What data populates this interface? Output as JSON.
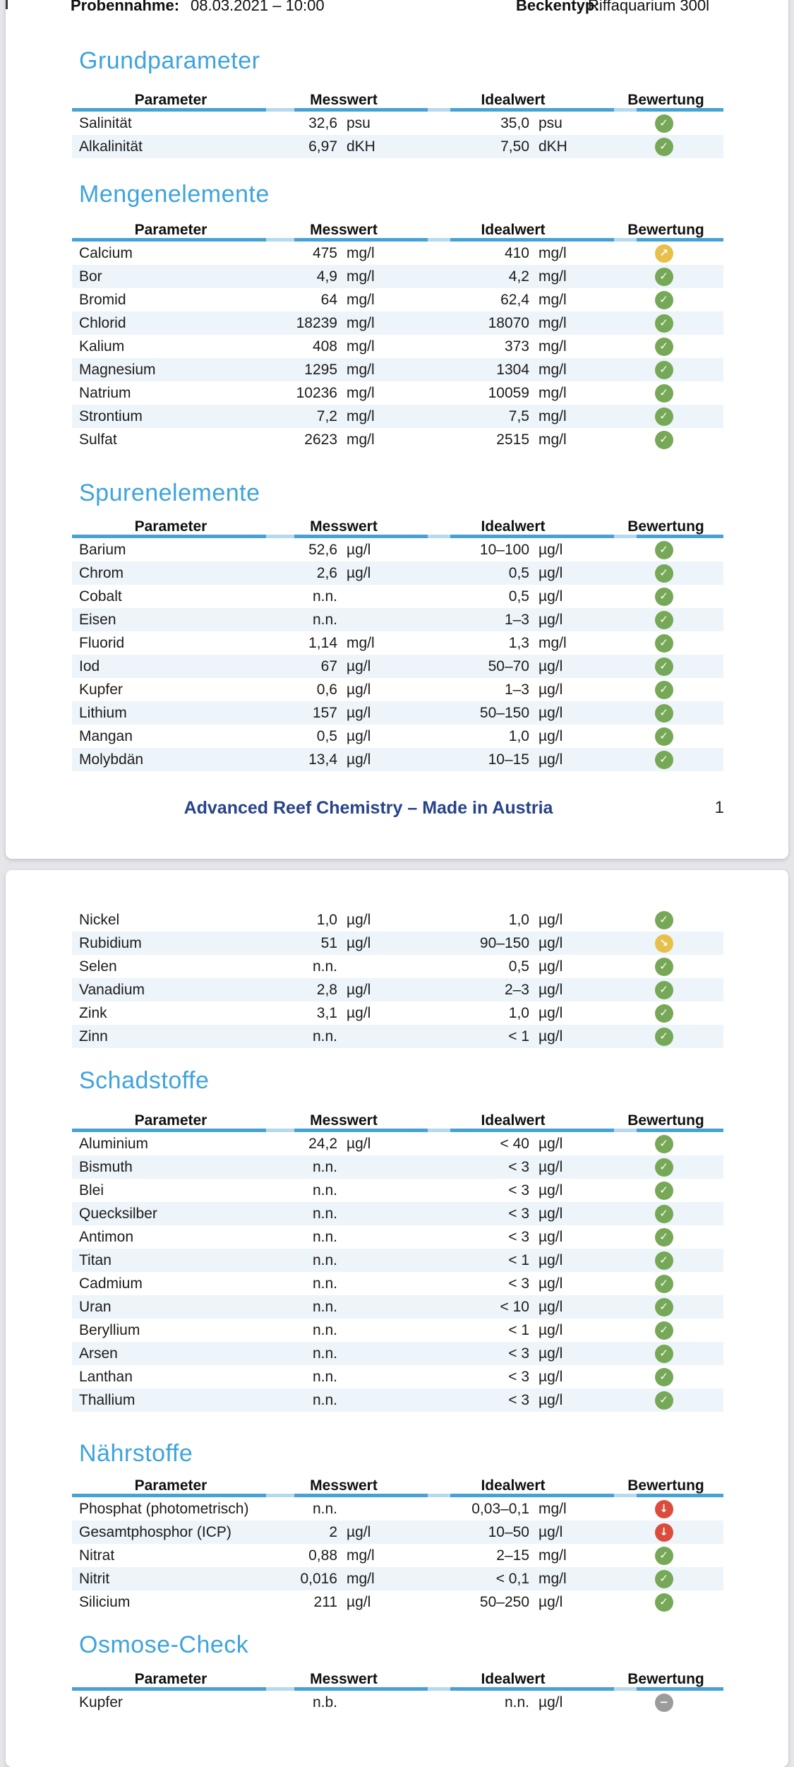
{
  "doc_header": {
    "sample_label": "Probennahme:",
    "sample_value": "08.03.2021 – 10:00",
    "tank_label": "Beckentyp:",
    "tank_value": "Riffaquarium 300l"
  },
  "columns": {
    "parameter": "Parameter",
    "messwert": "Messwert",
    "idealwert": "Idealwert",
    "bewertung": "Bewertung"
  },
  "footer": {
    "text": "Advanced Reef Chemistry – Made in Austria",
    "page_number": "1"
  },
  "colors": {
    "heading_blue": "#3fa3dc",
    "line_dark": "#46a1d6",
    "line_light": "#b5d9ee",
    "row_alt": "#edf4fa",
    "footer_navy": "#27438c",
    "status_ok": "#76a857",
    "status_warn": "#e7c04b",
    "status_bad": "#dc4c3c",
    "status_na": "#9b9b9b"
  },
  "status_icons": {
    "ok": {
      "glyph": "✓",
      "color": "#76a857",
      "name": "status-ok-check-icon"
    },
    "high": {
      "glyph": "↗",
      "color": "#e7c04b",
      "name": "status-slightly-high-arrow-icon"
    },
    "low_slight": {
      "glyph": "↘",
      "color": "#e7c04b",
      "name": "status-slightly-low-arrow-icon"
    },
    "low": {
      "glyph": "↓",
      "color": "#dc4c3c",
      "name": "status-too-low-arrow-icon"
    },
    "na": {
      "glyph": "−",
      "color": "#9b9b9b",
      "name": "status-not-determined-icon"
    }
  },
  "sections": [
    {
      "id": "grund",
      "page": 1,
      "title": "Grundparameter",
      "show_header": true,
      "rows": [
        {
          "param": "Salinität",
          "mw": "32,6",
          "mwu": "psu",
          "iw": "35,0",
          "iwu": "psu",
          "status": "ok"
        },
        {
          "param": "Alkalinität",
          "mw": "6,97",
          "mwu": "dKH",
          "iw": "7,50",
          "iwu": "dKH",
          "status": "ok"
        }
      ]
    },
    {
      "id": "mengen",
      "page": 1,
      "title": "Mengenelemente",
      "show_header": true,
      "rows": [
        {
          "param": "Calcium",
          "mw": "475",
          "mwu": "mg/l",
          "iw": "410",
          "iwu": "mg/l",
          "status": "high"
        },
        {
          "param": "Bor",
          "mw": "4,9",
          "mwu": "mg/l",
          "iw": "4,2",
          "iwu": "mg/l",
          "status": "ok"
        },
        {
          "param": "Bromid",
          "mw": "64",
          "mwu": "mg/l",
          "iw": "62,4",
          "iwu": "mg/l",
          "status": "ok"
        },
        {
          "param": "Chlorid",
          "mw": "18239",
          "mwu": "mg/l",
          "iw": "18070",
          "iwu": "mg/l",
          "status": "ok"
        },
        {
          "param": "Kalium",
          "mw": "408",
          "mwu": "mg/l",
          "iw": "373",
          "iwu": "mg/l",
          "status": "ok"
        },
        {
          "param": "Magnesium",
          "mw": "1295",
          "mwu": "mg/l",
          "iw": "1304",
          "iwu": "mg/l",
          "status": "ok"
        },
        {
          "param": "Natrium",
          "mw": "10236",
          "mwu": "mg/l",
          "iw": "10059",
          "iwu": "mg/l",
          "status": "ok"
        },
        {
          "param": "Strontium",
          "mw": "7,2",
          "mwu": "mg/l",
          "iw": "7,5",
          "iwu": "mg/l",
          "status": "ok"
        },
        {
          "param": "Sulfat",
          "mw": "2623",
          "mwu": "mg/l",
          "iw": "2515",
          "iwu": "mg/l",
          "status": "ok"
        }
      ]
    },
    {
      "id": "spuren",
      "page": 1,
      "title": "Spurenelemente",
      "show_header": true,
      "rows": [
        {
          "param": "Barium",
          "mw": "52,6",
          "mwu": "µg/l",
          "iw": "10–100",
          "iwu": "µg/l",
          "status": "ok"
        },
        {
          "param": "Chrom",
          "mw": "2,6",
          "mwu": "µg/l",
          "iw": "0,5",
          "iwu": "µg/l",
          "status": "ok"
        },
        {
          "param": "Cobalt",
          "mw": "n.n.",
          "mwu": "",
          "iw": "0,5",
          "iwu": "µg/l",
          "status": "ok"
        },
        {
          "param": "Eisen",
          "mw": "n.n.",
          "mwu": "",
          "iw": "1–3",
          "iwu": "µg/l",
          "status": "ok"
        },
        {
          "param": "Fluorid",
          "mw": "1,14",
          "mwu": "mg/l",
          "iw": "1,3",
          "iwu": "mg/l",
          "status": "ok"
        },
        {
          "param": "Iod",
          "mw": "67",
          "mwu": "µg/l",
          "iw": "50–70",
          "iwu": "µg/l",
          "status": "ok"
        },
        {
          "param": "Kupfer",
          "mw": "0,6",
          "mwu": "µg/l",
          "iw": "1–3",
          "iwu": "µg/l",
          "status": "ok"
        },
        {
          "param": "Lithium",
          "mw": "157",
          "mwu": "µg/l",
          "iw": "50–150",
          "iwu": "µg/l",
          "status": "ok"
        },
        {
          "param": "Mangan",
          "mw": "0,5",
          "mwu": "µg/l",
          "iw": "1,0",
          "iwu": "µg/l",
          "status": "ok"
        },
        {
          "param": "Molybdän",
          "mw": "13,4",
          "mwu": "µg/l",
          "iw": "10–15",
          "iwu": "µg/l",
          "status": "ok"
        }
      ]
    },
    {
      "id": "spuren2",
      "page": 2,
      "title": "",
      "show_header": false,
      "rows": [
        {
          "param": "Nickel",
          "mw": "1,0",
          "mwu": "µg/l",
          "iw": "1,0",
          "iwu": "µg/l",
          "status": "ok"
        },
        {
          "param": "Rubidium",
          "mw": "51",
          "mwu": "µg/l",
          "iw": "90–150",
          "iwu": "µg/l",
          "status": "low_slight"
        },
        {
          "param": "Selen",
          "mw": "n.n.",
          "mwu": "",
          "iw": "0,5",
          "iwu": "µg/l",
          "status": "ok"
        },
        {
          "param": "Vanadium",
          "mw": "2,8",
          "mwu": "µg/l",
          "iw": "2–3",
          "iwu": "µg/l",
          "status": "ok"
        },
        {
          "param": "Zink",
          "mw": "3,1",
          "mwu": "µg/l",
          "iw": "1,0",
          "iwu": "µg/l",
          "status": "ok"
        },
        {
          "param": "Zinn",
          "mw": "n.n.",
          "mwu": "",
          "iw": "< 1",
          "iwu": "µg/l",
          "status": "ok"
        }
      ]
    },
    {
      "id": "schad",
      "page": 2,
      "title": "Schadstoffe",
      "show_header": true,
      "rows": [
        {
          "param": "Aluminium",
          "mw": "24,2",
          "mwu": "µg/l",
          "iw": "< 40",
          "iwu": "µg/l",
          "status": "ok"
        },
        {
          "param": "Bismuth",
          "mw": "n.n.",
          "mwu": "",
          "iw": "< 3",
          "iwu": "µg/l",
          "status": "ok"
        },
        {
          "param": "Blei",
          "mw": "n.n.",
          "mwu": "",
          "iw": "< 3",
          "iwu": "µg/l",
          "status": "ok"
        },
        {
          "param": "Quecksilber",
          "mw": "n.n.",
          "mwu": "",
          "iw": "< 3",
          "iwu": "µg/l",
          "status": "ok"
        },
        {
          "param": "Antimon",
          "mw": "n.n.",
          "mwu": "",
          "iw": "< 3",
          "iwu": "µg/l",
          "status": "ok"
        },
        {
          "param": "Titan",
          "mw": "n.n.",
          "mwu": "",
          "iw": "< 1",
          "iwu": "µg/l",
          "status": "ok"
        },
        {
          "param": "Cadmium",
          "mw": "n.n.",
          "mwu": "",
          "iw": "< 3",
          "iwu": "µg/l",
          "status": "ok"
        },
        {
          "param": "Uran",
          "mw": "n.n.",
          "mwu": "",
          "iw": "< 10",
          "iwu": "µg/l",
          "status": "ok"
        },
        {
          "param": "Beryllium",
          "mw": "n.n.",
          "mwu": "",
          "iw": "< 1",
          "iwu": "µg/l",
          "status": "ok"
        },
        {
          "param": "Arsen",
          "mw": "n.n.",
          "mwu": "",
          "iw": "< 3",
          "iwu": "µg/l",
          "status": "ok"
        },
        {
          "param": "Lanthan",
          "mw": "n.n.",
          "mwu": "",
          "iw": "< 3",
          "iwu": "µg/l",
          "status": "ok"
        },
        {
          "param": "Thallium",
          "mw": "n.n.",
          "mwu": "",
          "iw": "< 3",
          "iwu": "µg/l",
          "status": "ok"
        }
      ]
    },
    {
      "id": "naehr",
      "page": 2,
      "title": "Nährstoffe",
      "show_header": true,
      "rows": [
        {
          "param": "Phosphat (photometrisch)",
          "mw": "n.n.",
          "mwu": "",
          "iw": "0,03–0,1",
          "iwu": "mg/l",
          "status": "low"
        },
        {
          "param": "Gesamtphosphor (ICP)",
          "mw": "2",
          "mwu": "µg/l",
          "iw": "10–50",
          "iwu": "µg/l",
          "status": "low"
        },
        {
          "param": "Nitrat",
          "mw": "0,88",
          "mwu": "mg/l",
          "iw": "2–15",
          "iwu": "mg/l",
          "status": "ok"
        },
        {
          "param": "Nitrit",
          "mw": "0,016",
          "mwu": "mg/l",
          "iw": "< 0,1",
          "iwu": "mg/l",
          "status": "ok"
        },
        {
          "param": "Silicium",
          "mw": "211",
          "mwu": "µg/l",
          "iw": "50–250",
          "iwu": "µg/l",
          "status": "ok"
        }
      ]
    },
    {
      "id": "osmose",
      "page": 2,
      "title": "Osmose-Check",
      "show_header": true,
      "rows": [
        {
          "param": "Kupfer",
          "mw": "n.b.",
          "mwu": "",
          "iw": "n.n.",
          "iwu": "µg/l",
          "status": "na"
        }
      ]
    }
  ]
}
